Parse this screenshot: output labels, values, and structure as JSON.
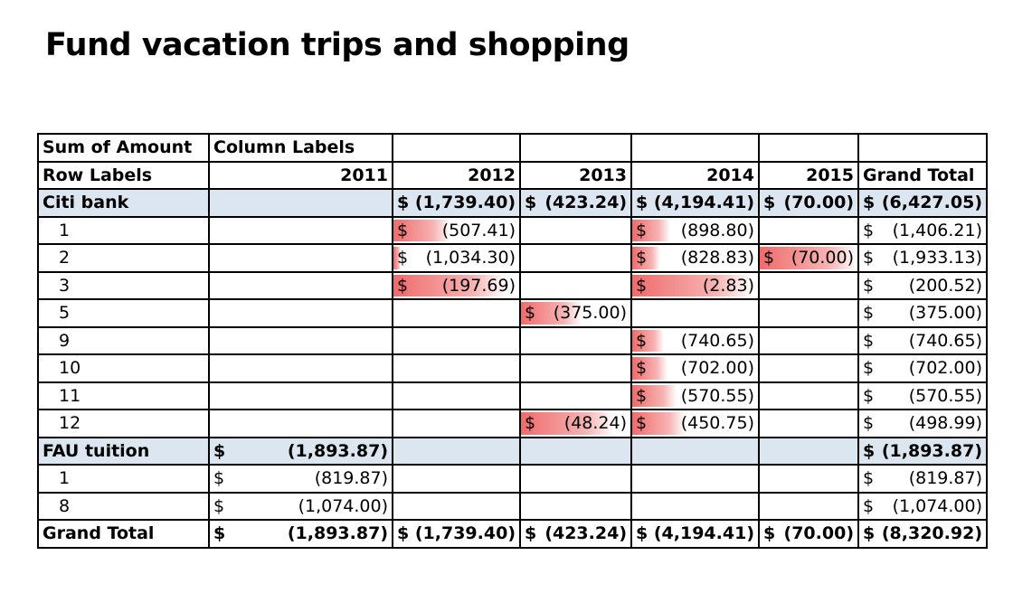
{
  "title": "Fund vacation trips and shopping",
  "header": {
    "corner": "Sum of Amount",
    "column_labels": "Column Labels",
    "row_labels": "Row Labels",
    "years": [
      "2011",
      "2012",
      "2013",
      "2014",
      "2015"
    ],
    "grand_total": "Grand Total"
  },
  "currency": "$",
  "colors": {
    "group_fill": "#dce6f1",
    "databar": "#ef6b6b"
  },
  "rows": [
    {
      "kind": "group",
      "label": "Citi bank",
      "cells": [
        "",
        "(1,739.40)",
        "(423.24)",
        "(4,194.41)",
        "(70.00)"
      ],
      "total": "(6,427.05)"
    },
    {
      "kind": "item",
      "label": "1",
      "cells": [
        "",
        "(507.41)",
        "",
        "(898.80)",
        ""
      ],
      "total": "(1,406.21)",
      "bars": [
        0,
        0.45,
        0,
        0.3,
        0
      ]
    },
    {
      "kind": "item",
      "label": "2",
      "cells": [
        "",
        "(1,034.30)",
        "",
        "(828.83)",
        "(70.00)"
      ],
      "total": "(1,933.13)",
      "bars": [
        0,
        0.06,
        0,
        0.22,
        1
      ]
    },
    {
      "kind": "item",
      "label": "3",
      "cells": [
        "",
        "(197.69)",
        "",
        "(2.83)",
        ""
      ],
      "total": "(200.52)",
      "bars": [
        0,
        0.9,
        0,
        0.95,
        0
      ]
    },
    {
      "kind": "item",
      "label": "5",
      "cells": [
        "",
        "",
        "(375.00)",
        "",
        ""
      ],
      "total": "(375.00)",
      "bars": [
        0,
        0,
        0.55,
        0,
        0
      ]
    },
    {
      "kind": "item",
      "label": "9",
      "cells": [
        "",
        "",
        "",
        "(740.65)",
        ""
      ],
      "total": "(740.65)",
      "bars": [
        0,
        0,
        0,
        0.25,
        0
      ]
    },
    {
      "kind": "item",
      "label": "10",
      "cells": [
        "",
        "",
        "",
        "(702.00)",
        ""
      ],
      "total": "(702.00)",
      "bars": [
        0,
        0,
        0,
        0.28,
        0
      ]
    },
    {
      "kind": "item",
      "label": "11",
      "cells": [
        "",
        "",
        "",
        "(570.55)",
        ""
      ],
      "total": "(570.55)",
      "bars": [
        0,
        0,
        0,
        0.35,
        0
      ]
    },
    {
      "kind": "item",
      "label": "12",
      "cells": [
        "",
        "",
        "(48.24)",
        "(450.75)",
        ""
      ],
      "total": "(498.99)",
      "bars": [
        0,
        0,
        0.85,
        0.42,
        0
      ]
    },
    {
      "kind": "group",
      "label": "FAU tuition",
      "cells": [
        "(1,893.87)",
        "",
        "",
        "",
        ""
      ],
      "total": "(1,893.87)"
    },
    {
      "kind": "item",
      "label": "1",
      "cells": [
        "(819.87)",
        "",
        "",
        "",
        ""
      ],
      "total": "(819.87)",
      "bars": [
        0,
        0,
        0,
        0,
        0
      ]
    },
    {
      "kind": "item",
      "label": "8",
      "cells": [
        "(1,074.00)",
        "",
        "",
        "",
        ""
      ],
      "total": "(1,074.00)",
      "bars": [
        0,
        0,
        0,
        0,
        0
      ]
    },
    {
      "kind": "total",
      "label": "Grand Total",
      "cells": [
        "(1,893.87)",
        "(1,739.40)",
        "(423.24)",
        "(4,194.41)",
        "(70.00)"
      ],
      "total": "(8,320.92)"
    }
  ]
}
